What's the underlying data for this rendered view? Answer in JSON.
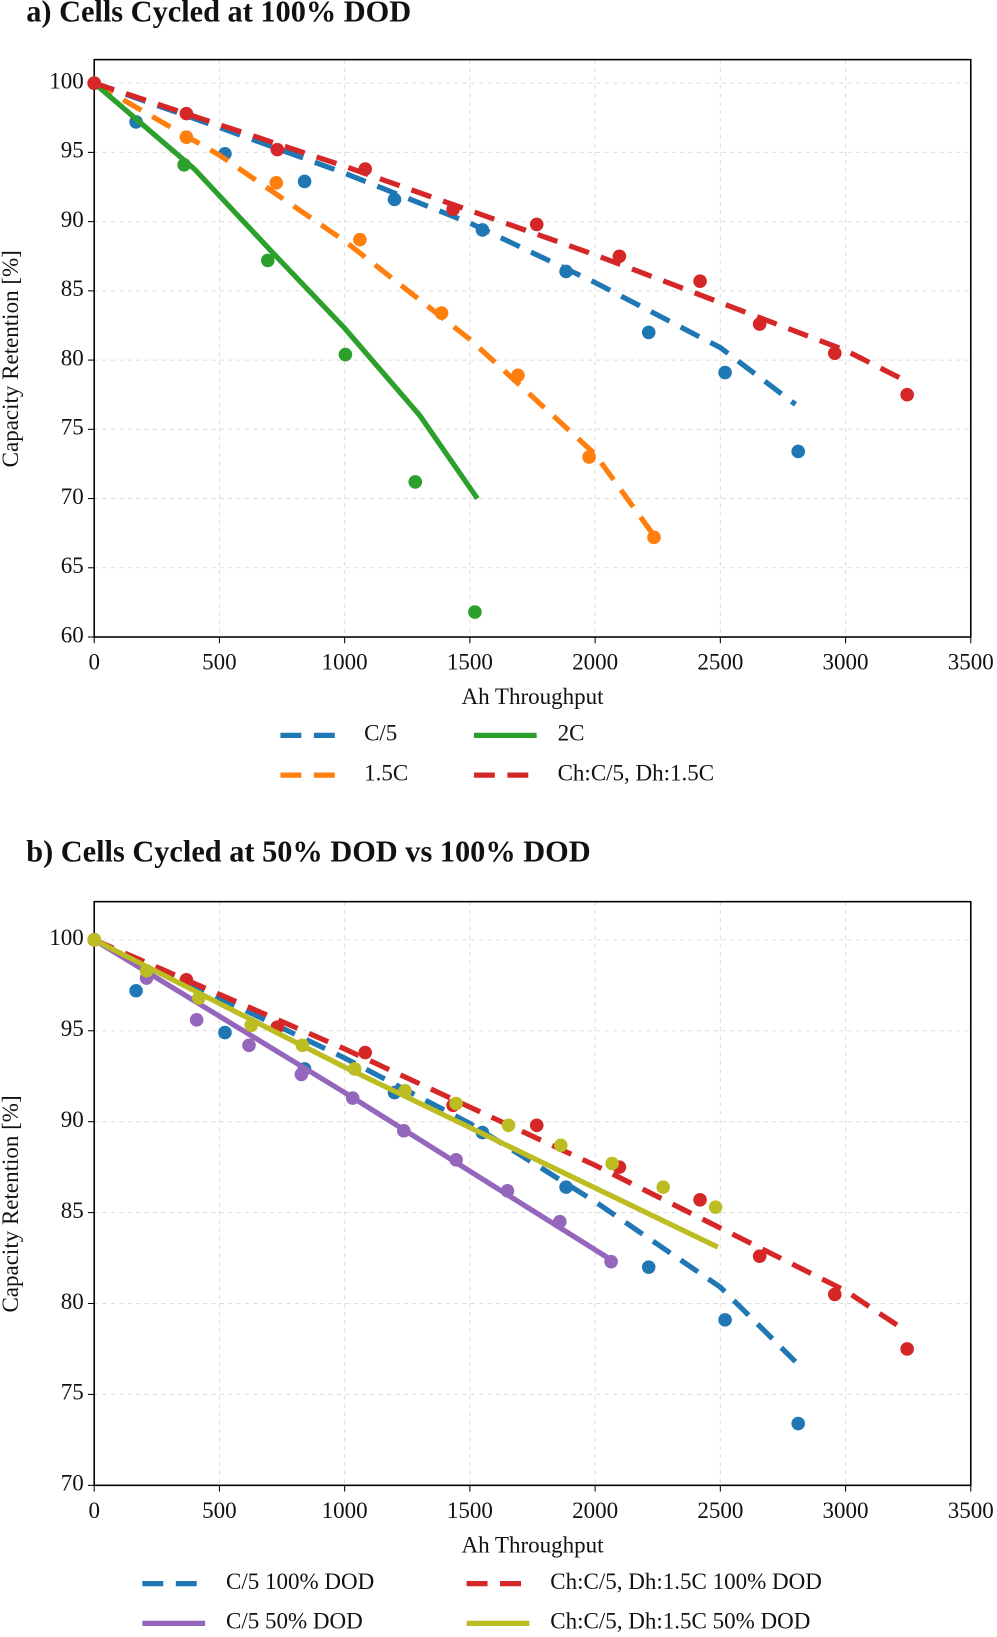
{
  "chart_data": [
    {
      "type": "scatter-fit",
      "title": "a) Cells Cycled at 100% DOD",
      "x_label": "Ah Throughput",
      "y_label": "Capacity Retention [%]",
      "xlim": [
        0,
        3500
      ],
      "ylim": [
        60,
        101.7
      ],
      "xticks": [
        0,
        500,
        1000,
        1500,
        2000,
        2500,
        3000,
        3500
      ],
      "yticks": [
        60,
        65,
        70,
        75,
        80,
        85,
        90,
        95,
        100
      ],
      "grid": true,
      "series": [
        {
          "name": "C/5",
          "color": "#1f77b4",
          "line_style": "dashed",
          "x": [
            0,
            167,
            522,
            840,
            1199,
            1550,
            1884,
            2214,
            2519,
            2811
          ],
          "values": [
            100,
            97.2,
            94.9,
            92.9,
            91.6,
            89.4,
            86.4,
            82.0,
            79.1,
            73.4
          ],
          "fit_x": [
            0,
            500,
            1000,
            1500,
            2000,
            2500,
            2800
          ],
          "fit_values": [
            100,
            96.8,
            93.5,
            89.9,
            85.6,
            80.9,
            76.8
          ]
        },
        {
          "name": "1.5C",
          "color": "#ff7f0e",
          "line_style": "dashed",
          "x": [
            0,
            368,
            727,
            1061,
            1387,
            1692,
            1976,
            2235
          ],
          "values": [
            100,
            96.1,
            92.8,
            88.7,
            83.4,
            78.9,
            73.0,
            67.2
          ],
          "fit_x": [
            0,
            500,
            1000,
            1500,
            2000,
            2240
          ],
          "fit_values": [
            100,
            94.8,
            88.6,
            81.5,
            73.2,
            67.2
          ]
        },
        {
          "name": "2C",
          "color": "#2ca02c",
          "line_style": "solid",
          "x": [
            0,
            359,
            693,
            1003,
            1282,
            1520
          ],
          "values": [
            100,
            94.1,
            87.2,
            80.4,
            71.2,
            61.8
          ],
          "fit_x": [
            0,
            400,
            700,
            1000,
            1300,
            1530
          ],
          "fit_values": [
            100,
            93.8,
            88.0,
            82.3,
            76.0,
            70.0
          ]
        },
        {
          "name": "Ch:C/5, Dh:1.5C",
          "color": "#d62728",
          "line_style": "dashed",
          "x": [
            0,
            368,
            731,
            1082,
            1433,
            1767,
            2097,
            2419,
            2657,
            2957,
            3246
          ],
          "values": [
            100,
            97.8,
            95.2,
            93.8,
            90.9,
            89.8,
            87.5,
            85.7,
            82.6,
            80.5,
            77.5
          ],
          "fit_x": [
            0,
            1000,
            2000,
            3000,
            3240
          ],
          "fit_values": [
            100,
            94.0,
            87.6,
            80.7,
            78.5
          ]
        }
      ]
    },
    {
      "type": "scatter-fit",
      "title": "b) Cells Cycled at 50% DOD vs 100% DOD",
      "x_label": "Ah Throughput",
      "y_label": "Capacity Retention [%]",
      "xlim": [
        0,
        3500
      ],
      "ylim": [
        70,
        102.1
      ],
      "xticks": [
        0,
        500,
        1000,
        1500,
        2000,
        2500,
        3000,
        3500
      ],
      "yticks": [
        70,
        75,
        80,
        85,
        90,
        95,
        100
      ],
      "grid": true,
      "series": [
        {
          "name": "C/5 100% DOD",
          "color": "#1f77b4",
          "line_style": "dashed",
          "x": [
            0,
            167,
            522,
            840,
            1199,
            1550,
            1884,
            2214,
            2519,
            2811
          ],
          "values": [
            100,
            97.2,
            94.9,
            92.9,
            91.6,
            89.4,
            86.4,
            82.0,
            79.1,
            73.4
          ],
          "fit_x": [
            0,
            500,
            1000,
            1500,
            2000,
            2500,
            2800
          ],
          "fit_values": [
            100,
            96.8,
            93.5,
            89.9,
            85.6,
            80.9,
            76.8
          ]
        },
        {
          "name": "C/5 50% DOD",
          "color": "#9467bd",
          "line_style": "solid",
          "x": [
            0,
            209,
            409,
            618,
            827,
            1032,
            1236,
            1445,
            1650,
            1859,
            2064
          ],
          "values": [
            100,
            97.9,
            95.6,
            94.2,
            92.6,
            91.3,
            89.5,
            87.9,
            86.2,
            84.5,
            82.3
          ],
          "fit_x": [
            0,
            1000,
            2064
          ],
          "fit_values": [
            100,
            91.6,
            82.4
          ]
        },
        {
          "name": "Ch:C/5, Dh:1.5C 100% DOD",
          "color": "#d62728",
          "line_style": "dashed",
          "x": [
            0,
            368,
            731,
            1082,
            1433,
            1767,
            2097,
            2419,
            2657,
            2957,
            3246
          ],
          "values": [
            100,
            97.8,
            95.2,
            93.8,
            90.9,
            89.8,
            87.5,
            85.7,
            82.6,
            80.5,
            77.5
          ],
          "fit_x": [
            0,
            1000,
            2000,
            3000,
            3240
          ],
          "fit_values": [
            100,
            94.0,
            87.6,
            80.7,
            78.5
          ]
        },
        {
          "name": "Ch:C/5, Dh:1.5C 50% DOD",
          "color": "#bcbd22",
          "line_style": "solid",
          "x": [
            0,
            209,
            418,
            627,
            831,
            1040,
            1241,
            1445,
            1654,
            1863,
            2068,
            2272,
            2481
          ],
          "values": [
            100,
            98.3,
            96.8,
            95.3,
            94.2,
            92.9,
            91.7,
            91.0,
            89.8,
            88.7,
            87.7,
            86.4,
            85.3
          ],
          "fit_x": [
            0,
            1000,
            2490
          ],
          "fit_values": [
            100,
            93.0,
            83.1
          ]
        }
      ]
    }
  ]
}
